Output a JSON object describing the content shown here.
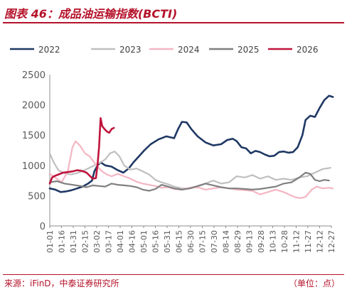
{
  "header": {
    "title": "图表 46：成品油运输指数(BCTI)"
  },
  "footer": {
    "source": "来源：iFinD，中泰证券研究所",
    "unit": "（单位：点）"
  },
  "chart_data": {
    "type": "line",
    "title": "",
    "xlabel": "",
    "ylabel": "",
    "ylim": [
      0,
      2500
    ],
    "yticks": [
      "0",
      "500",
      "1000",
      "1500",
      "2000",
      "2500"
    ],
    "x_tick_labels": [
      "01-01",
      "01-16",
      "01-31",
      "02-15",
      "03-02",
      "03-17",
      "04-01",
      "04-16",
      "05-01",
      "05-16",
      "05-31",
      "06-15",
      "06-30",
      "07-15",
      "07-30",
      "08-14",
      "08-29",
      "09-13",
      "09-28",
      "10-13",
      "10-28",
      "11-12",
      "11-27",
      "12-12",
      "12-27"
    ],
    "grid": false,
    "legend_position": "top",
    "x_unit": "day_of_year",
    "series": [
      {
        "name": "2022",
        "color": "#1f3864",
        "points": [
          [
            1,
            620
          ],
          [
            8,
            600
          ],
          [
            15,
            560
          ],
          [
            22,
            570
          ],
          [
            29,
            590
          ],
          [
            36,
            620
          ],
          [
            43,
            650
          ],
          [
            50,
            700
          ],
          [
            55,
            750
          ],
          [
            58,
            900
          ],
          [
            62,
            1000
          ],
          [
            66,
            1050
          ],
          [
            72,
            1000
          ],
          [
            80,
            980
          ],
          [
            88,
            920
          ],
          [
            95,
            880
          ],
          [
            102,
            950
          ],
          [
            108,
            1050
          ],
          [
            115,
            1150
          ],
          [
            122,
            1250
          ],
          [
            130,
            1350
          ],
          [
            140,
            1430
          ],
          [
            150,
            1480
          ],
          [
            160,
            1450
          ],
          [
            165,
            1600
          ],
          [
            170,
            1720
          ],
          [
            176,
            1710
          ],
          [
            182,
            1600
          ],
          [
            190,
            1480
          ],
          [
            200,
            1380
          ],
          [
            210,
            1330
          ],
          [
            220,
            1350
          ],
          [
            228,
            1420
          ],
          [
            235,
            1440
          ],
          [
            240,
            1400
          ],
          [
            246,
            1300
          ],
          [
            252,
            1280
          ],
          [
            258,
            1200
          ],
          [
            264,
            1240
          ],
          [
            270,
            1220
          ],
          [
            276,
            1180
          ],
          [
            282,
            1150
          ],
          [
            288,
            1160
          ],
          [
            294,
            1220
          ],
          [
            300,
            1230
          ],
          [
            306,
            1210
          ],
          [
            312,
            1220
          ],
          [
            318,
            1300
          ],
          [
            324,
            1500
          ],
          [
            328,
            1750
          ],
          [
            334,
            1820
          ],
          [
            340,
            1800
          ],
          [
            346,
            1950
          ],
          [
            352,
            2080
          ],
          [
            358,
            2150
          ],
          [
            363,
            2130
          ]
        ]
      },
      {
        "name": "2023",
        "color": "#bfbfbf",
        "points": [
          [
            1,
            1200
          ],
          [
            6,
            1050
          ],
          [
            12,
            920
          ],
          [
            20,
            870
          ],
          [
            28,
            850
          ],
          [
            35,
            870
          ],
          [
            42,
            900
          ],
          [
            50,
            950
          ],
          [
            58,
            1000
          ],
          [
            66,
            1050
          ],
          [
            72,
            1100
          ],
          [
            78,
            1200
          ],
          [
            84,
            1230
          ],
          [
            90,
            1150
          ],
          [
            96,
            1000
          ],
          [
            104,
            930
          ],
          [
            112,
            950
          ],
          [
            120,
            900
          ],
          [
            128,
            850
          ],
          [
            136,
            760
          ],
          [
            144,
            720
          ],
          [
            152,
            690
          ],
          [
            160,
            650
          ],
          [
            170,
            620
          ],
          [
            180,
            620
          ],
          [
            190,
            650
          ],
          [
            200,
            700
          ],
          [
            210,
            750
          ],
          [
            220,
            700
          ],
          [
            230,
            720
          ],
          [
            240,
            820
          ],
          [
            250,
            800
          ],
          [
            260,
            840
          ],
          [
            270,
            780
          ],
          [
            280,
            820
          ],
          [
            290,
            760
          ],
          [
            300,
            780
          ],
          [
            310,
            760
          ],
          [
            320,
            800
          ],
          [
            330,
            820
          ],
          [
            340,
            880
          ],
          [
            350,
            940
          ],
          [
            360,
            960
          ]
        ]
      },
      {
        "name": "2024",
        "color": "#f4b6c2",
        "points": [
          [
            1,
            860
          ],
          [
            8,
            800
          ],
          [
            16,
            720
          ],
          [
            24,
            900
          ],
          [
            30,
            1300
          ],
          [
            34,
            1400
          ],
          [
            40,
            1320
          ],
          [
            46,
            1200
          ],
          [
            52,
            1150
          ],
          [
            56,
            1080
          ],
          [
            62,
            980
          ],
          [
            68,
            900
          ],
          [
            74,
            850
          ],
          [
            80,
            820
          ],
          [
            88,
            860
          ],
          [
            96,
            820
          ],
          [
            104,
            780
          ],
          [
            112,
            730
          ],
          [
            120,
            700
          ],
          [
            128,
            680
          ],
          [
            136,
            660
          ],
          [
            144,
            630
          ],
          [
            152,
            640
          ],
          [
            160,
            610
          ],
          [
            168,
            600
          ],
          [
            176,
            620
          ],
          [
            184,
            640
          ],
          [
            192,
            630
          ],
          [
            200,
            600
          ],
          [
            210,
            620
          ],
          [
            220,
            640
          ],
          [
            230,
            620
          ],
          [
            240,
            600
          ],
          [
            250,
            590
          ],
          [
            260,
            580
          ],
          [
            270,
            520
          ],
          [
            280,
            560
          ],
          [
            290,
            600
          ],
          [
            300,
            560
          ],
          [
            310,
            500
          ],
          [
            316,
            470
          ],
          [
            322,
            460
          ],
          [
            328,
            480
          ],
          [
            336,
            600
          ],
          [
            342,
            650
          ],
          [
            350,
            620
          ],
          [
            358,
            630
          ],
          [
            363,
            620
          ]
        ]
      },
      {
        "name": "2025",
        "color": "#7f7f7f",
        "points": [
          [
            1,
            720
          ],
          [
            10,
            740
          ],
          [
            20,
            700
          ],
          [
            30,
            680
          ],
          [
            40,
            660
          ],
          [
            48,
            640
          ],
          [
            56,
            670
          ],
          [
            64,
            660
          ],
          [
            72,
            650
          ],
          [
            80,
            700
          ],
          [
            88,
            680
          ],
          [
            96,
            670
          ],
          [
            104,
            660
          ],
          [
            112,
            640
          ],
          [
            120,
            600
          ],
          [
            128,
            580
          ],
          [
            136,
            610
          ],
          [
            144,
            680
          ],
          [
            152,
            650
          ],
          [
            160,
            620
          ],
          [
            170,
            600
          ],
          [
            180,
            620
          ],
          [
            190,
            660
          ],
          [
            200,
            700
          ],
          [
            210,
            670
          ],
          [
            220,
            640
          ],
          [
            230,
            620
          ],
          [
            240,
            620
          ],
          [
            250,
            610
          ],
          [
            260,
            600
          ],
          [
            270,
            610
          ],
          [
            280,
            630
          ],
          [
            290,
            650
          ],
          [
            300,
            700
          ],
          [
            310,
            720
          ],
          [
            320,
            800
          ],
          [
            328,
            880
          ],
          [
            334,
            860
          ],
          [
            340,
            760
          ],
          [
            346,
            740
          ],
          [
            352,
            760
          ],
          [
            358,
            750
          ]
        ]
      },
      {
        "name": "2026",
        "color": "#c0143c",
        "points": [
          [
            1,
            700
          ],
          [
            4,
            800
          ],
          [
            8,
            830
          ],
          [
            12,
            850
          ],
          [
            18,
            880
          ],
          [
            24,
            890
          ],
          [
            30,
            900
          ],
          [
            36,
            920
          ],
          [
            42,
            910
          ],
          [
            48,
            880
          ],
          [
            52,
            830
          ],
          [
            56,
            780
          ],
          [
            60,
            790
          ],
          [
            62,
            1000
          ],
          [
            64,
            1300
          ],
          [
            66,
            1780
          ],
          [
            68,
            1650
          ],
          [
            71,
            1600
          ],
          [
            74,
            1560
          ],
          [
            77,
            1540
          ],
          [
            80,
            1600
          ],
          [
            83,
            1620
          ]
        ]
      }
    ]
  }
}
